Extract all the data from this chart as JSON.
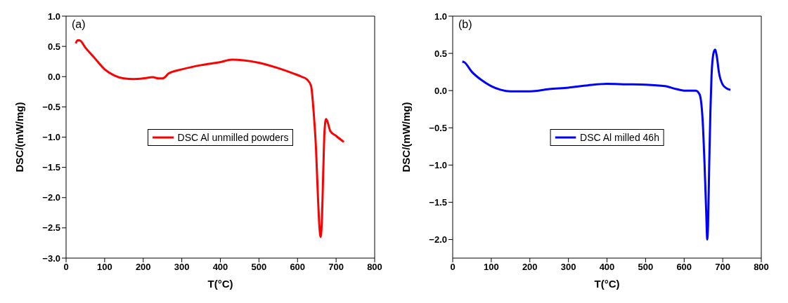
{
  "chart_data": [
    {
      "type": "line",
      "xlabel": "T(°C)",
      "ylabel": "DSC/(mW/mg)",
      "annotations": [
        "(a)"
      ],
      "xlim": [
        0,
        800
      ],
      "xticks": [
        0,
        100,
        200,
        300,
        400,
        500,
        600,
        700,
        800
      ],
      "ylim": [
        -3,
        1
      ],
      "yticks": [
        {
          "value": -3,
          "label": "−3.0"
        },
        -2.5,
        {
          "value": -2,
          "label": "−2.0"
        },
        -1.5,
        {
          "value": -1,
          "label": "−1.0"
        },
        -0.5,
        {
          "value": 0,
          "label": "0.0"
        },
        0.5,
        {
          "value": 1,
          "label": "1.0"
        }
      ],
      "legend": "center",
      "grid": false,
      "marker": "none",
      "line_style": "solid",
      "series": [
        {
          "name": "DSC Al unmilled powders",
          "color": "#ff0000",
          "x": [
            25,
            30,
            35,
            50,
            75,
            100,
            125,
            150,
            175,
            200,
            225,
            240,
            250,
            258,
            265,
            300,
            350,
            400,
            430,
            460,
            500,
            550,
            590,
            610,
            625,
            635,
            642,
            648,
            653,
            657,
            660,
            663,
            667,
            670,
            674,
            678,
            685,
            700,
            720
          ],
          "values": [
            0.55,
            0.6,
            0.6,
            0.48,
            0.3,
            0.12,
            0.02,
            -0.03,
            -0.04,
            -0.03,
            -0.01,
            -0.03,
            -0.03,
            0.0,
            0.05,
            0.12,
            0.19,
            0.24,
            0.28,
            0.27,
            0.23,
            0.14,
            0.05,
            0.0,
            -0.05,
            -0.15,
            -0.6,
            -1.2,
            -2.0,
            -2.5,
            -2.65,
            -2.4,
            -1.5,
            -0.9,
            -0.7,
            -0.75,
            -0.9,
            -0.98,
            -1.08
          ]
        }
      ]
    },
    {
      "type": "line",
      "xlabel": "T(°C)",
      "ylabel": "DSC/(mW/mg)",
      "annotations": [
        "(b)"
      ],
      "xlim": [
        0,
        800
      ],
      "xticks": [
        0,
        100,
        200,
        300,
        400,
        500,
        600,
        700,
        800
      ],
      "ylim": [
        -2.25,
        1
      ],
      "yticks": [
        {
          "value": -2,
          "label": "−2.0"
        },
        -1.5,
        {
          "value": -1,
          "label": "−1.0"
        },
        -0.5,
        {
          "value": 0,
          "label": "0.0"
        },
        0.5,
        {
          "value": 1,
          "label": "1.0"
        }
      ],
      "legend": "center",
      "grid": false,
      "marker": "none",
      "line_style": "solid",
      "series": [
        {
          "name": "DSC Al milled 46h",
          "color": "#0000ff",
          "x": [
            25,
            30,
            50,
            75,
            100,
            125,
            150,
            200,
            250,
            300,
            350,
            400,
            450,
            500,
            550,
            580,
            600,
            630,
            640,
            648,
            653,
            657,
            660,
            662,
            665,
            668,
            671,
            676,
            680,
            685,
            690,
            700,
            710,
            720
          ],
          "values": [
            0.39,
            0.38,
            0.25,
            0.14,
            0.06,
            0.01,
            -0.01,
            -0.01,
            0.02,
            0.04,
            0.07,
            0.09,
            0.085,
            0.08,
            0.06,
            0.02,
            0.0,
            0.0,
            -0.05,
            -0.4,
            -1.0,
            -1.6,
            -2.0,
            -1.8,
            -1.0,
            -0.3,
            0.2,
            0.5,
            0.55,
            0.45,
            0.25,
            0.08,
            0.03,
            0.01
          ]
        }
      ]
    }
  ]
}
